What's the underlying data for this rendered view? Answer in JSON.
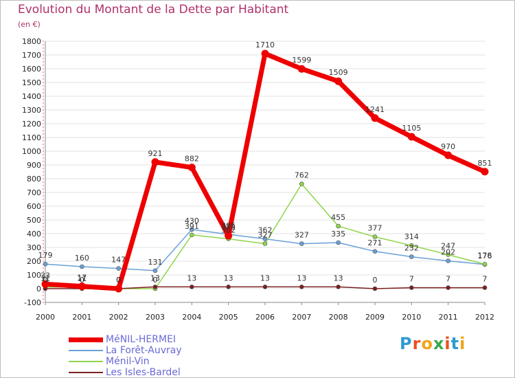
{
  "header": {
    "title": "Evolution du Montant de la Dette par Habitant",
    "subtitle": "(en €)"
  },
  "logo": {
    "text": "Proxiti",
    "colors": [
      "#2e9ad0",
      "#e8531e",
      "#f2a41b",
      "#3aa74a",
      "#e8531e",
      "#2e9ad0",
      "#f2a41b"
    ]
  },
  "chart_data": {
    "type": "line",
    "title": "Evolution du Montant de la Dette par Habitant",
    "subtitle": "(en €)",
    "x": [
      "2000",
      "2001",
      "2002",
      "2003",
      "2004",
      "2005",
      "2006",
      "2007",
      "2008",
      "2009",
      "2010",
      "2011",
      "2012"
    ],
    "ylim": [
      -100,
      1800
    ],
    "y_ticks": [
      "-100",
      "0",
      "100",
      "200",
      "300",
      "400",
      "500",
      "600",
      "700",
      "800",
      "900",
      "1000",
      "1100",
      "1200",
      "1300",
      "1400",
      "1500",
      "1600",
      "1700",
      "1800"
    ],
    "grid": "horizontal",
    "legend_position": "bottom-left",
    "series": [
      {
        "name": "MéNIL-HERMEI",
        "color": "#ee0000",
        "values": [
          33,
          17,
          0,
          921,
          882,
          385,
          1710,
          1599,
          1509,
          1241,
          1105,
          970,
          851
        ],
        "labels": [
          "33",
          "17",
          "0",
          "921",
          "882",
          "385",
          "1710",
          "1599",
          "1509",
          "1241",
          "1105",
          "970",
          "851"
        ]
      },
      {
        "name": "La Forêt-Auvray",
        "color": "#6aa0d8",
        "values": [
          179,
          160,
          147,
          131,
          430,
          395,
          362,
          327,
          335,
          271,
          232,
          202,
          176
        ],
        "labels": [
          "179",
          "160",
          "147",
          "131",
          "430",
          "395",
          "362",
          "327",
          "335",
          "271",
          "232",
          "202",
          "176"
        ]
      },
      {
        "name": "Ménil-Vin",
        "color": "#8ed44a",
        "values": [
          11,
          11,
          0,
          0,
          391,
          362,
          327,
          762,
          455,
          377,
          314,
          247,
          178
        ],
        "labels": [
          "11",
          "11",
          "0",
          "0",
          "391",
          "362",
          "327",
          "762",
          "455",
          "377",
          "314",
          "247",
          "178"
        ]
      },
      {
        "name": "Les Isles-Bardel",
        "color": "#7a1f1f",
        "values": [
          0,
          0,
          0,
          13,
          13,
          13,
          13,
          13,
          13,
          0,
          7,
          7,
          7
        ],
        "labels": [
          "0",
          "0",
          "0",
          "13",
          "13",
          "13",
          "13",
          "13",
          "13",
          "0",
          "7",
          "7",
          "7"
        ]
      }
    ]
  }
}
